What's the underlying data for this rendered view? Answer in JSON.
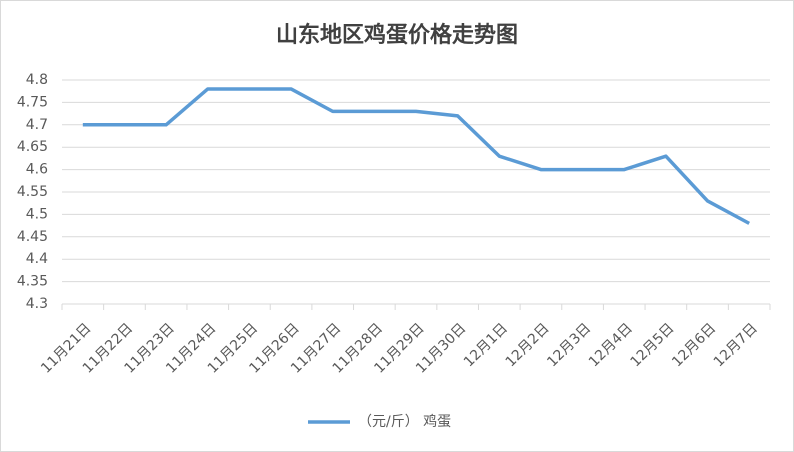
{
  "chart_data": {
    "type": "line",
    "title": "山东地区鸡蛋价格走势图",
    "categories": [
      "11月21日",
      "11月22日",
      "11月23日",
      "11月24日",
      "11月25日",
      "11月26日",
      "11月27日",
      "11月28日",
      "11月29日",
      "11月30日",
      "12月1日",
      "12月2日",
      "12月3日",
      "12月4日",
      "12月5日",
      "12月6日",
      "12月7日"
    ],
    "series": [
      {
        "name": "（元/斤） 鸡蛋",
        "color": "#5b9bd5",
        "values": [
          4.7,
          4.7,
          4.7,
          4.78,
          4.78,
          4.78,
          4.73,
          4.73,
          4.73,
          4.72,
          4.63,
          4.6,
          4.6,
          4.6,
          4.63,
          4.53,
          4.48
        ]
      }
    ],
    "ylim": [
      4.3,
      4.8
    ],
    "yticks": [
      4.3,
      4.35,
      4.4,
      4.45,
      4.5,
      4.55,
      4.6,
      4.65,
      4.7,
      4.75,
      4.8
    ],
    "grid": true,
    "legend": "bottom"
  }
}
